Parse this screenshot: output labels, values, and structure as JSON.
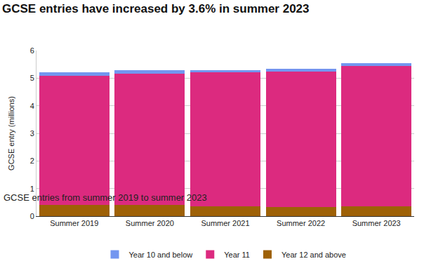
{
  "chart_data": {
    "type": "bar",
    "title": "GCSE entries have increased by 3.6% in summer 2023",
    "subtitle": "GCSE entries from summer 2019 to summer 2023",
    "y_label": "GCSE entry (millions)",
    "categories": [
      "Summer 2019",
      "Summer 2020",
      "Summer 2021",
      "Summer 2022",
      "Summer 2023"
    ],
    "series": [
      {
        "name": "Year 10 and below",
        "color": "#7396f0",
        "values": [
          0.13,
          0.13,
          0.09,
          0.1,
          0.1
        ]
      },
      {
        "name": "Year 11",
        "color": "#dc2a7f",
        "values": [
          4.68,
          4.75,
          4.84,
          4.92,
          5.09
        ]
      },
      {
        "name": "Year 12 and above",
        "color": "#9e6106",
        "values": [
          0.4,
          0.4,
          0.36,
          0.32,
          0.35
        ]
      }
    ],
    "stacked": true,
    "ylim": [
      0,
      6
    ],
    "yticks": [
      0,
      1,
      2,
      3,
      4,
      5,
      6
    ],
    "grid": true,
    "legend": "bottom"
  }
}
